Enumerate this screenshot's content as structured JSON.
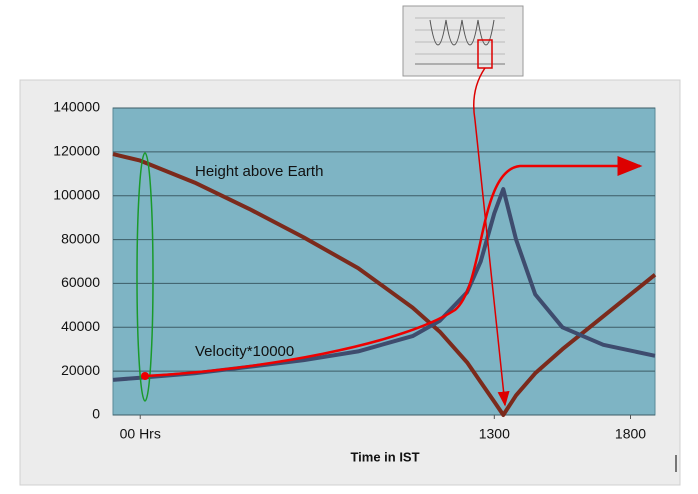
{
  "chart_data": {
    "type": "line",
    "xlabel": "Time in IST",
    "x": [
      -100,
      0,
      200,
      400,
      600,
      800,
      1000,
      1100,
      1200,
      1250,
      1300,
      1333,
      1380,
      1450,
      1550,
      1700,
      1890
    ],
    "series": [
      {
        "name": "Height above Earth",
        "color": "#7b2a1c",
        "values": [
          119000,
          116000,
          106000,
          94000,
          81000,
          67000,
          49000,
          38000,
          24000,
          15000,
          6000,
          0,
          9000,
          19000,
          30000,
          45000,
          64000
        ]
      },
      {
        "name": "Velocity*10000",
        "color": "#3e4c6e",
        "values": [
          16000,
          17000,
          19000,
          22000,
          25000,
          29000,
          36000,
          43000,
          56000,
          70000,
          92000,
          103000,
          80000,
          55000,
          40000,
          32000,
          27000
        ]
      }
    ],
    "xlim": [
      -100,
      1890
    ],
    "xticks": [
      {
        "value": 0,
        "label": "00 Hrs"
      },
      1300,
      1800
    ],
    "ylim": [
      0,
      140000
    ],
    "yticks": [
      0,
      20000,
      40000,
      60000,
      80000,
      100000,
      120000,
      140000
    ],
    "grid": true
  }
}
